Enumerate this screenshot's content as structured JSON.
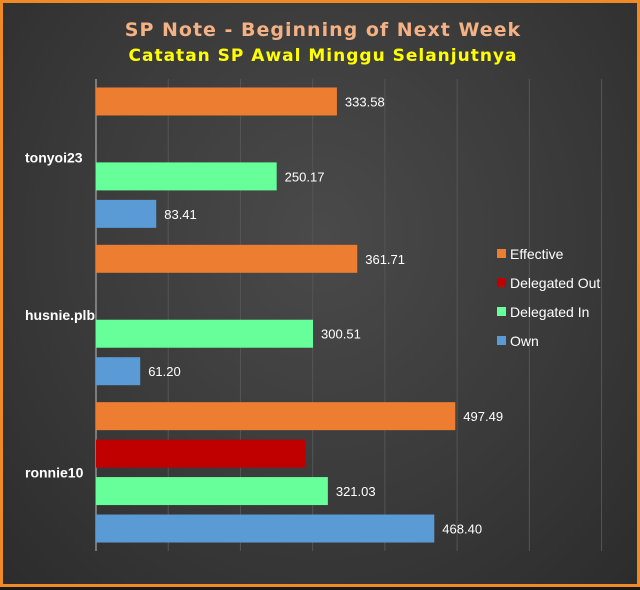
{
  "chart_data": {
    "type": "bar",
    "orientation": "horizontal",
    "title": "SP Note - Beginning of Next Week",
    "subtitle": "Catatan SP Awal Minggu Selanjutnya",
    "categories": [
      "tonyoi23",
      "husnie.plb",
      "ronnie10"
    ],
    "series": [
      {
        "name": "Effective",
        "color": "#ed7d31",
        "values": [
          333.58,
          361.71,
          497.49
        ],
        "labels": [
          "333.58",
          "361.71",
          "497.49"
        ]
      },
      {
        "name": "Delegated Out",
        "color": "#c00000",
        "values": [
          0,
          0,
          290
        ],
        "labels": [
          "",
          "",
          ""
        ]
      },
      {
        "name": "Delegated In",
        "color": "#66ff99",
        "values": [
          250.17,
          300.51,
          321.03
        ],
        "labels": [
          "250.17",
          "300.51",
          "321.03"
        ]
      },
      {
        "name": "Own",
        "color": "#5b9bd5",
        "values": [
          83.41,
          61.2,
          468.4
        ],
        "labels": [
          "83.41",
          "61.20",
          "468.40"
        ]
      }
    ],
    "xlim": [
      0,
      720
    ],
    "legend_position": "right",
    "grid": true
  }
}
